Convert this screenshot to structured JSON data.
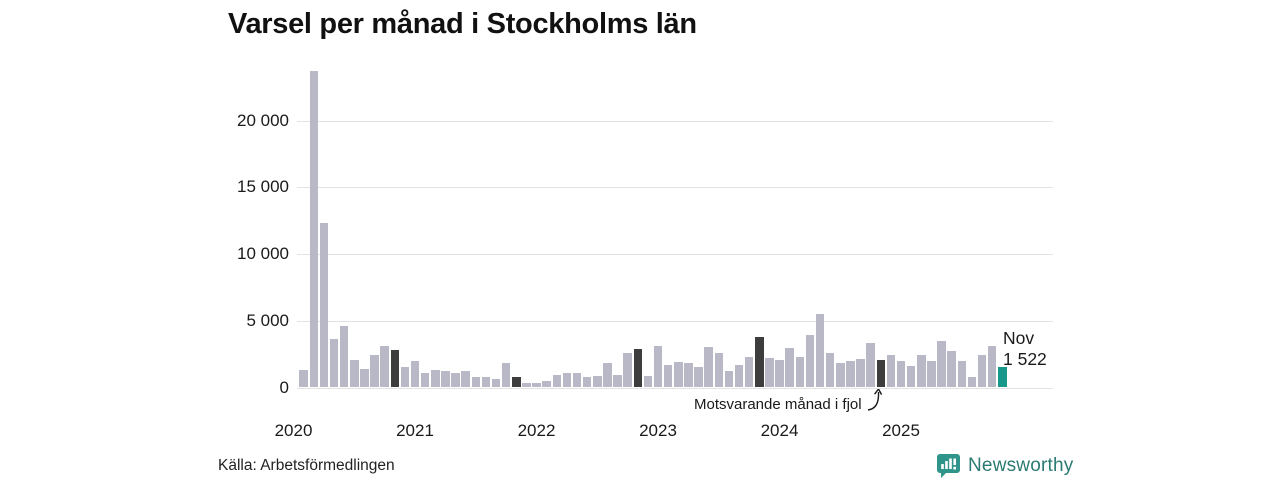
{
  "colors": {
    "bar": "#b8b8c7",
    "nov_bar": "#3d3d3d",
    "current_bar": "#17988a",
    "grid": "#e3e3e6",
    "text": "#1a1a1a",
    "logo_badge": "#2f948a",
    "logo_text": "#2c7b72"
  },
  "logo": {
    "wordmark": "Newsworthy"
  },
  "chart_data": {
    "type": "bar",
    "title": "Varsel per månad i Stockholms län",
    "source": "Källa: Arbetsförmedlingen",
    "xlabel": "",
    "ylabel": "",
    "ylim": [
      0,
      24000
    ],
    "grid": true,
    "yticks": [
      0,
      5000,
      10000,
      15000,
      20000
    ],
    "ytick_labels": [
      "0",
      "5 000",
      "10 000",
      "15 000",
      "20 000"
    ],
    "x_year_labels": [
      "2020",
      "2021",
      "2022",
      "2023",
      "2024",
      "2025"
    ],
    "annotation": "Motsvarande månad i fjol",
    "annotation_points_to": "Nov 2024",
    "last_point_label": {
      "line1": "Nov",
      "line2": "1 522"
    },
    "highlight_key": {
      "n": "normal month",
      "d": "november previous years (dark)",
      "c": "current month Nov 2025 (teal)"
    },
    "series": [
      {
        "m": "Feb 2020",
        "v": 1300,
        "k": "n"
      },
      {
        "m": "Mar 2020",
        "v": 23700,
        "k": "n"
      },
      {
        "m": "Apr 2020",
        "v": 12300,
        "k": "n"
      },
      {
        "m": "May 2020",
        "v": 3600,
        "k": "n"
      },
      {
        "m": "Jun 2020",
        "v": 4600,
        "k": "n"
      },
      {
        "m": "Jul 2020",
        "v": 2050,
        "k": "n"
      },
      {
        "m": "Aug 2020",
        "v": 1350,
        "k": "n"
      },
      {
        "m": "Sep 2020",
        "v": 2400,
        "k": "n"
      },
      {
        "m": "Oct 2020",
        "v": 3100,
        "k": "n"
      },
      {
        "m": "Nov 2020",
        "v": 2800,
        "k": "d"
      },
      {
        "m": "Dec 2020",
        "v": 1500,
        "k": "n"
      },
      {
        "m": "Jan 2021",
        "v": 1950,
        "k": "n"
      },
      {
        "m": "Feb 2021",
        "v": 1100,
        "k": "n"
      },
      {
        "m": "Mar 2021",
        "v": 1300,
        "k": "n"
      },
      {
        "m": "Apr 2021",
        "v": 1250,
        "k": "n"
      },
      {
        "m": "May 2021",
        "v": 1050,
        "k": "n"
      },
      {
        "m": "Jun 2021",
        "v": 1200,
        "k": "n"
      },
      {
        "m": "Jul 2021",
        "v": 820,
        "k": "n"
      },
      {
        "m": "Aug 2021",
        "v": 790,
        "k": "n"
      },
      {
        "m": "Sep 2021",
        "v": 650,
        "k": "n"
      },
      {
        "m": "Oct 2021",
        "v": 1800,
        "k": "n"
      },
      {
        "m": "Nov 2021",
        "v": 800,
        "k": "d"
      },
      {
        "m": "Dec 2021",
        "v": 370,
        "k": "n"
      },
      {
        "m": "Jan 2022",
        "v": 330,
        "k": "n"
      },
      {
        "m": "Feb 2022",
        "v": 520,
        "k": "n"
      },
      {
        "m": "Mar 2022",
        "v": 950,
        "k": "n"
      },
      {
        "m": "Apr 2022",
        "v": 1100,
        "k": "n"
      },
      {
        "m": "May 2022",
        "v": 1050,
        "k": "n"
      },
      {
        "m": "Jun 2022",
        "v": 820,
        "k": "n"
      },
      {
        "m": "Jul 2022",
        "v": 840,
        "k": "n"
      },
      {
        "m": "Aug 2022",
        "v": 1850,
        "k": "n"
      },
      {
        "m": "Sep 2022",
        "v": 900,
        "k": "n"
      },
      {
        "m": "Oct 2022",
        "v": 2600,
        "k": "n"
      },
      {
        "m": "Nov 2022",
        "v": 2900,
        "k": "d"
      },
      {
        "m": "Dec 2022",
        "v": 870,
        "k": "n"
      },
      {
        "m": "Jan 2023",
        "v": 3100,
        "k": "n"
      },
      {
        "m": "Feb 2023",
        "v": 1700,
        "k": "n"
      },
      {
        "m": "Mar 2023",
        "v": 1900,
        "k": "n"
      },
      {
        "m": "Apr 2023",
        "v": 1800,
        "k": "n"
      },
      {
        "m": "May 2023",
        "v": 1550,
        "k": "n"
      },
      {
        "m": "Jun 2023",
        "v": 3000,
        "k": "n"
      },
      {
        "m": "Jul 2023",
        "v": 2600,
        "k": "n"
      },
      {
        "m": "Aug 2023",
        "v": 1200,
        "k": "n"
      },
      {
        "m": "Sep 2023",
        "v": 1700,
        "k": "n"
      },
      {
        "m": "Oct 2023",
        "v": 2300,
        "k": "n"
      },
      {
        "m": "Nov 2023",
        "v": 3800,
        "k": "d"
      },
      {
        "m": "Dec 2023",
        "v": 2200,
        "k": "n"
      },
      {
        "m": "Jan 2024",
        "v": 2050,
        "k": "n"
      },
      {
        "m": "Feb 2024",
        "v": 2950,
        "k": "n"
      },
      {
        "m": "Mar 2024",
        "v": 2300,
        "k": "n"
      },
      {
        "m": "Apr 2024",
        "v": 3950,
        "k": "n"
      },
      {
        "m": "May 2024",
        "v": 5500,
        "k": "n"
      },
      {
        "m": "Jun 2024",
        "v": 2600,
        "k": "n"
      },
      {
        "m": "Jul 2024",
        "v": 1800,
        "k": "n"
      },
      {
        "m": "Aug 2024",
        "v": 2000,
        "k": "n"
      },
      {
        "m": "Sep 2024",
        "v": 2100,
        "k": "n"
      },
      {
        "m": "Oct 2024",
        "v": 3300,
        "k": "n"
      },
      {
        "m": "Nov 2024",
        "v": 2050,
        "k": "d"
      },
      {
        "m": "Dec 2024",
        "v": 2450,
        "k": "n"
      },
      {
        "m": "Jan 2025",
        "v": 2000,
        "k": "n"
      },
      {
        "m": "Feb 2025",
        "v": 1600,
        "k": "n"
      },
      {
        "m": "Mar 2025",
        "v": 2400,
        "k": "n"
      },
      {
        "m": "Apr 2025",
        "v": 2000,
        "k": "n"
      },
      {
        "m": "May 2025",
        "v": 3450,
        "k": "n"
      },
      {
        "m": "Jun 2025",
        "v": 2700,
        "k": "n"
      },
      {
        "m": "Jul 2025",
        "v": 2000,
        "k": "n"
      },
      {
        "m": "Aug 2025",
        "v": 770,
        "k": "n"
      },
      {
        "m": "Sep 2025",
        "v": 2450,
        "k": "n"
      },
      {
        "m": "Oct 2025",
        "v": 3100,
        "k": "n"
      },
      {
        "m": "Nov 2025",
        "v": 1522,
        "k": "c"
      }
    ]
  }
}
